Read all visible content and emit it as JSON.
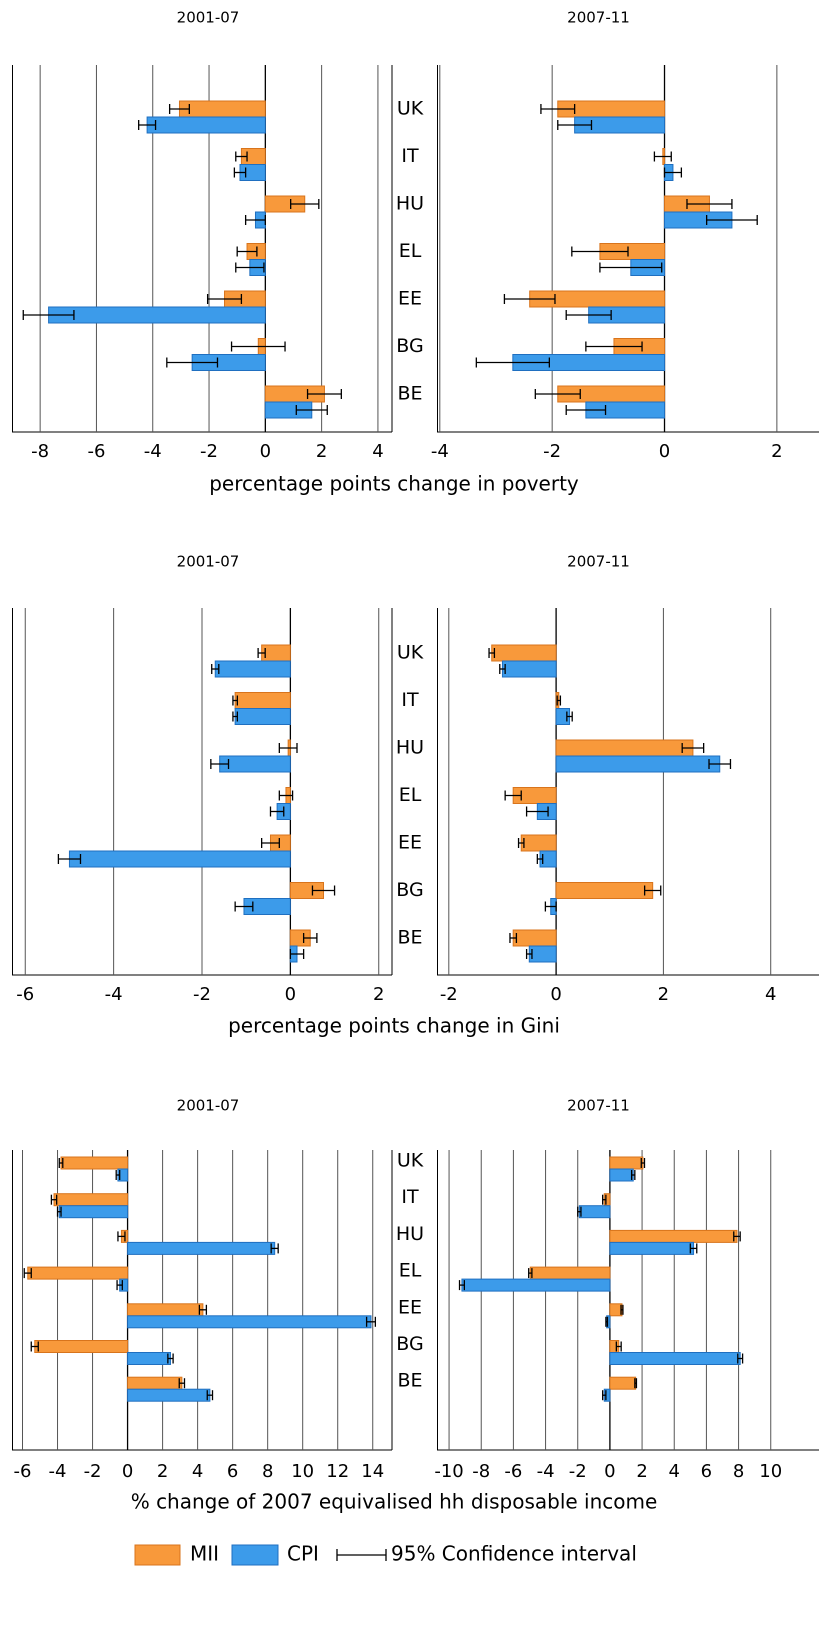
{
  "legend": [
    {
      "name": "MII",
      "color": "#f8993b"
    },
    {
      "name": "CPI",
      "color": "#3c9bea"
    },
    {
      "name": "95% Confidence interval"
    }
  ],
  "chart_data": [
    {
      "type": "bar",
      "orientation": "horizontal",
      "categories": [
        "UK",
        "IT",
        "HU",
        "EL",
        "EE",
        "BG",
        "BE"
      ],
      "xlabel": "percentage points change in poverty",
      "panels": [
        {
          "title": "2001-07",
          "xlim": [
            -9,
            4.5
          ],
          "xticks": [
            -8,
            -6,
            -4,
            -2,
            0,
            2,
            4
          ],
          "series": [
            {
              "values": [
                -3.05,
                -0.85,
                1.4,
                -0.65,
                -1.45,
                -0.25,
                2.1
              ],
              "errors": [
                0.35,
                0.2,
                0.5,
                0.35,
                0.6,
                0.95,
                0.6
              ]
            },
            {
              "values": [
                -4.2,
                -0.9,
                -0.35,
                -0.55,
                -7.7,
                -2.6,
                1.65
              ],
              "errors": [
                0.3,
                0.2,
                0.35,
                0.5,
                0.9,
                0.9,
                0.55
              ]
            }
          ]
        },
        {
          "title": "2007-11",
          "xlim": [
            -4.05,
            2.75
          ],
          "xticks": [
            -4,
            -2,
            0,
            2
          ],
          "series": [
            {
              "values": [
                -1.9,
                -0.03,
                0.8,
                -1.15,
                -2.4,
                -0.9,
                -1.9
              ],
              "errors": [
                0.3,
                0.15,
                0.4,
                0.5,
                0.45,
                0.5,
                0.4
              ]
            },
            {
              "values": [
                -1.6,
                0.15,
                1.2,
                -0.6,
                -1.35,
                -2.7,
                -1.4
              ],
              "errors": [
                0.3,
                0.15,
                0.45,
                0.55,
                0.4,
                0.65,
                0.35
              ]
            }
          ]
        }
      ]
    },
    {
      "type": "bar",
      "orientation": "horizontal",
      "categories": [
        "UK",
        "IT",
        "HU",
        "EL",
        "EE",
        "BG",
        "BE"
      ],
      "xlabel": "percentage points change in Gini",
      "panels": [
        {
          "title": "2001-07",
          "xlim": [
            -6.3,
            2.3
          ],
          "xticks": [
            -6,
            -4,
            -2,
            0,
            2
          ],
          "series": [
            {
              "values": [
                -0.65,
                -1.25,
                -0.05,
                -0.1,
                -0.45,
                0.75,
                0.45
              ],
              "errors": [
                0.08,
                0.05,
                0.2,
                0.15,
                0.2,
                0.25,
                0.15
              ]
            },
            {
              "values": [
                -1.7,
                -1.25,
                -1.6,
                -0.3,
                -5.0,
                -1.05,
                0.15
              ],
              "errors": [
                0.08,
                0.05,
                0.2,
                0.15,
                0.25,
                0.2,
                0.15
              ]
            }
          ]
        },
        {
          "title": "2007-11",
          "xlim": [
            -2.22,
            4.9
          ],
          "xticks": [
            -2,
            0,
            2,
            4
          ],
          "series": [
            {
              "values": [
                -1.2,
                0.05,
                2.55,
                -0.8,
                -0.65,
                1.8,
                -0.8
              ],
              "errors": [
                0.05,
                0.03,
                0.2,
                0.15,
                0.05,
                0.15,
                0.06
              ]
            },
            {
              "values": [
                -1.0,
                0.25,
                3.05,
                -0.35,
                -0.3,
                -0.1,
                -0.5
              ],
              "errors": [
                0.05,
                0.05,
                0.2,
                0.2,
                0.05,
                0.1,
                0.05
              ]
            }
          ]
        }
      ]
    },
    {
      "type": "bar",
      "orientation": "horizontal",
      "categories": [
        "UK",
        "IT",
        "HU",
        "EL",
        "EE",
        "BG",
        "BE"
      ],
      "xlabel": "% change of 2007 equivalised hh disposable income",
      "panels": [
        {
          "title": "2001-07",
          "xlim": [
            -6.6,
            15.1
          ],
          "xticks": [
            -6,
            -4,
            -2,
            0,
            2,
            4,
            6,
            8,
            10,
            12,
            14
          ],
          "series": [
            {
              "values": [
                -3.8,
                -4.2,
                -0.35,
                -5.7,
                4.3,
                -5.3,
                3.1
              ],
              "errors": [
                0.1,
                0.15,
                0.2,
                0.2,
                0.2,
                0.2,
                0.15
              ]
            },
            {
              "values": [
                -0.55,
                -3.9,
                8.4,
                -0.45,
                13.9,
                2.45,
                4.7
              ],
              "errors": [
                0.1,
                0.1,
                0.2,
                0.15,
                0.25,
                0.15,
                0.15
              ]
            }
          ]
        },
        {
          "title": "2007-11",
          "xlim": [
            -10.75,
            13
          ],
          "xticks": [
            -10,
            -8,
            -6,
            -4,
            -2,
            0,
            2,
            4,
            6,
            8,
            10
          ],
          "series": [
            {
              "values": [
                2.05,
                -0.35,
                7.9,
                -4.95,
                0.75,
                0.55,
                1.6
              ],
              "errors": [
                0.1,
                0.1,
                0.2,
                0.1,
                0.06,
                0.15,
                0.05
              ]
            },
            {
              "values": [
                1.45,
                -1.9,
                5.2,
                -9.2,
                -0.2,
                8.1,
                -0.35
              ],
              "errors": [
                0.1,
                0.1,
                0.2,
                0.15,
                0.05,
                0.15,
                0.1
              ]
            }
          ]
        }
      ]
    }
  ]
}
